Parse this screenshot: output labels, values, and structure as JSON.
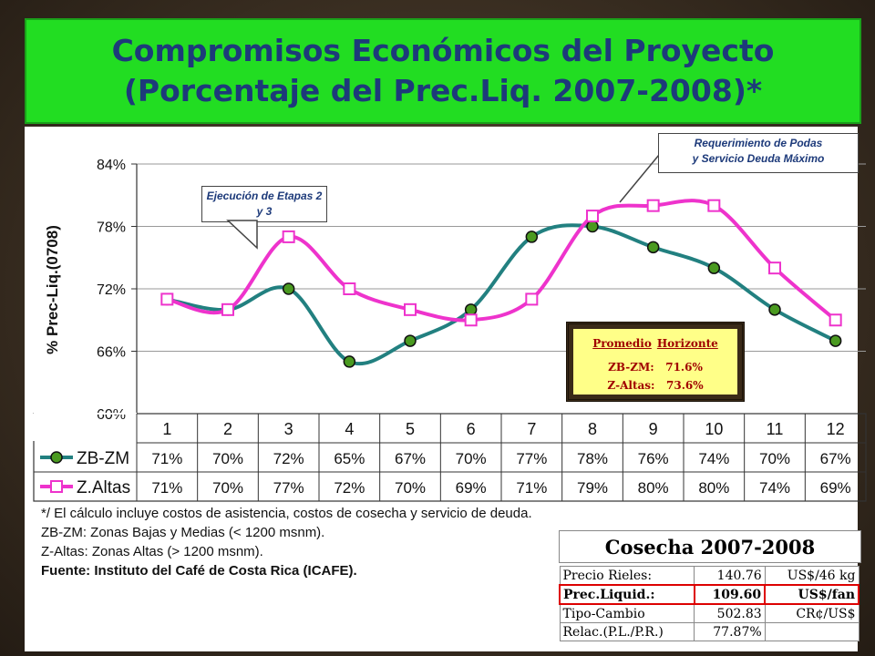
{
  "title": {
    "line1": "Compromisos Económicos del Proyecto",
    "line2": "(Porcentaje del Prec.Liq. 2007-2008)*"
  },
  "chart_data": {
    "type": "line",
    "ylabel": "% Prec-Liq.(0708)",
    "ylim": [
      60,
      84
    ],
    "yticks": [
      "60%",
      "66%",
      "72%",
      "78%",
      "84%"
    ],
    "categories": [
      "1",
      "2",
      "3",
      "4",
      "5",
      "6",
      "7",
      "8",
      "9",
      "10",
      "11",
      "12"
    ],
    "series": [
      {
        "name": "ZB-ZM",
        "values": [
          71,
          70,
          72,
          65,
          67,
          70,
          77,
          78,
          76,
          74,
          70,
          67
        ],
        "labels": [
          "71%",
          "70%",
          "72%",
          "65%",
          "67%",
          "70%",
          "77%",
          "78%",
          "76%",
          "74%",
          "70%",
          "67%"
        ],
        "color": "#228080",
        "marker_color": "#4a9a20"
      },
      {
        "name": "Z.Altas",
        "values": [
          71,
          70,
          77,
          72,
          70,
          69,
          71,
          79,
          80,
          80,
          74,
          69
        ],
        "labels": [
          "71%",
          "70%",
          "77%",
          "72%",
          "70%",
          "69%",
          "71%",
          "79%",
          "80%",
          "80%",
          "74%",
          "69%"
        ],
        "color": "#ee33cc"
      }
    ],
    "grid": true
  },
  "callouts": {
    "left": "Ejecución de Etapas 2 y 3",
    "right_line1": "Requerimiento de Podas",
    "right_line2": "y Servicio Deuda Máximo"
  },
  "promedio": {
    "header1": "Promedio",
    "header2": "Horizonte",
    "zb_label": "ZB-ZM:",
    "zb_value": "71.6%",
    "za_label": "Z-Altas:",
    "za_value": "73.6%"
  },
  "notes": {
    "line1": "*/ El cálculo incluye costos de asistencia, costos de cosecha y servicio de deuda.",
    "line2": "ZB-ZM: Zonas Bajas y Medias (< 1200 msnm).",
    "line3": "Z-Altas: Zonas Altas (> 1200 msnm).",
    "line4": "Fuente: Instituto del Café de Costa Rica (ICAFE)."
  },
  "cosecha": {
    "title": "Cosecha 2007-2008",
    "rows": [
      {
        "label": "Precio Rieles:",
        "value": "140.76",
        "unit": "US$/46 kg",
        "highlight": false
      },
      {
        "label": "Prec.Liquid.:",
        "value": "109.60",
        "unit": "US$/fan",
        "highlight": true
      },
      {
        "label": "Tipo-Cambio",
        "value": "502.83",
        "unit": "CR¢/US$",
        "highlight": false
      },
      {
        "label": "Relac.(P.L./P.R.)",
        "value": "77.87%",
        "unit": "",
        "highlight": false
      }
    ]
  }
}
